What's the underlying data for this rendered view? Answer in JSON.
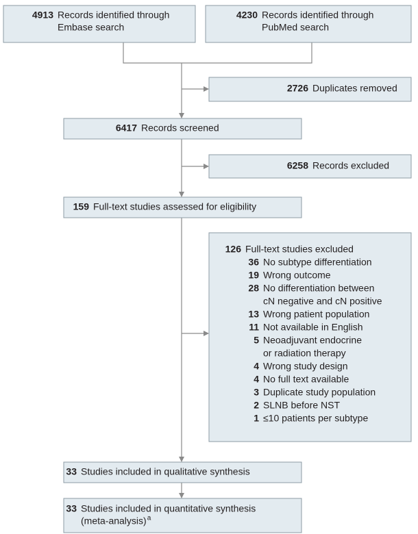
{
  "boxes": [
    {
      "count": 4913,
      "lines": [
        "Records identified through",
        "Embase search"
      ]
    },
    {
      "count": 4230,
      "lines": [
        "Records identified through",
        "PubMed search"
      ]
    },
    {
      "count": 2726,
      "lines": [
        "Duplicates removed"
      ]
    },
    {
      "count": 6417,
      "lines": [
        "Records screened"
      ]
    },
    {
      "count": 6258,
      "lines": [
        "Records excluded"
      ]
    },
    {
      "count": 159,
      "lines": [
        "Full-text studies assessed for eligibility"
      ]
    },
    {
      "count": 126,
      "lines": [
        "Full-text studies excluded"
      ],
      "reasons": [
        {
          "count": 36,
          "lines": [
            "No subtype differentiation"
          ]
        },
        {
          "count": 19,
          "lines": [
            "Wrong outcome"
          ]
        },
        {
          "count": 28,
          "lines": [
            "No differentiation between",
            "cN negative and cN positive"
          ]
        },
        {
          "count": 13,
          "lines": [
            "Wrong patient population"
          ]
        },
        {
          "count": 11,
          "lines": [
            "Not available in English"
          ]
        },
        {
          "count": 5,
          "lines": [
            "Neoadjuvant endocrine",
            "or radiation therapy"
          ]
        },
        {
          "count": 4,
          "lines": [
            "Wrong study design"
          ]
        },
        {
          "count": 4,
          "lines": [
            "No full text available"
          ]
        },
        {
          "count": 3,
          "lines": [
            "Duplicate study population"
          ]
        },
        {
          "count": 2,
          "lines": [
            "SLNB before NST"
          ]
        },
        {
          "count": 1,
          "lines": [
            "≤10 patients per subtype"
          ]
        }
      ]
    },
    {
      "count": 33,
      "lines": [
        "Studies included in qualitative synthesis"
      ]
    },
    {
      "count": 33,
      "lines": [
        "Studies included in quantitative synthesis",
        "(meta-analysis)"
      ],
      "note_marker": "a"
    }
  ]
}
